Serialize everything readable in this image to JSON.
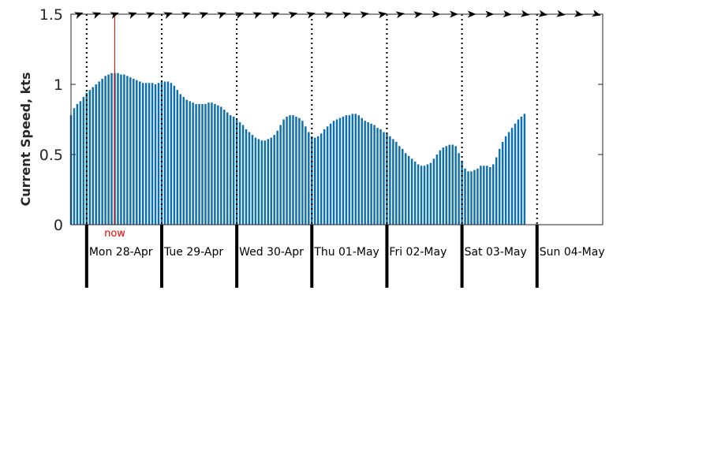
{
  "chart_data": {
    "type": "bar",
    "ylabel": "Current Speed, kts",
    "ylim": [
      0,
      1.5
    ],
    "yticks": [
      {
        "value": 0,
        "label": "0"
      },
      {
        "value": 0.5,
        "label": "0.5"
      },
      {
        "value": 1,
        "label": "1"
      },
      {
        "value": 1.5,
        "label": "1.5"
      }
    ],
    "x_start": "2025-04-27 19:00",
    "x_end": "2025-05-04 21:00",
    "x_step_hours": 1,
    "now": {
      "time": "2025-04-28 09:00",
      "label": "now",
      "color": "#ff0000"
    },
    "day_boundaries": [
      "2025-04-28 00:00",
      "2025-04-29 00:00",
      "2025-04-30 00:00",
      "2025-05-01 00:00",
      "2025-05-02 00:00",
      "2025-05-03 00:00",
      "2025-05-04 00:00"
    ],
    "day_labels": [
      "Mon 28-Apr",
      "Tue 29-Apr",
      "Wed 30-Apr",
      "Thu 01-May",
      "Fri 02-May",
      "Sat 03-May",
      "Sun 04-May"
    ],
    "bar_color": "#0c6fb0",
    "grid": "vertical dotted lines at day boundaries",
    "direction_arrows": "black arrowheads along top edge showing current direction",
    "values": [
      0.78,
      0.83,
      0.86,
      0.88,
      0.91,
      0.94,
      0.96,
      0.98,
      1.0,
      1.02,
      1.04,
      1.06,
      1.07,
      1.08,
      1.08,
      1.08,
      1.07,
      1.07,
      1.06,
      1.05,
      1.04,
      1.03,
      1.02,
      1.01,
      1.01,
      1.01,
      1.01,
      1.0,
      1.01,
      1.02,
      1.02,
      1.02,
      1.01,
      0.99,
      0.96,
      0.93,
      0.91,
      0.89,
      0.88,
      0.87,
      0.86,
      0.86,
      0.86,
      0.86,
      0.87,
      0.87,
      0.86,
      0.85,
      0.84,
      0.82,
      0.8,
      0.78,
      0.77,
      0.75,
      0.73,
      0.71,
      0.68,
      0.66,
      0.64,
      0.62,
      0.61,
      0.6,
      0.6,
      0.61,
      0.62,
      0.64,
      0.67,
      0.71,
      0.75,
      0.77,
      0.78,
      0.78,
      0.77,
      0.76,
      0.74,
      0.7,
      0.66,
      0.63,
      0.62,
      0.63,
      0.65,
      0.68,
      0.7,
      0.72,
      0.74,
      0.75,
      0.76,
      0.77,
      0.78,
      0.78,
      0.79,
      0.79,
      0.78,
      0.76,
      0.74,
      0.73,
      0.72,
      0.71,
      0.69,
      0.68,
      0.66,
      0.65,
      0.63,
      0.61,
      0.59,
      0.56,
      0.54,
      0.51,
      0.49,
      0.47,
      0.45,
      0.43,
      0.42,
      0.42,
      0.43,
      0.44,
      0.47,
      0.5,
      0.53,
      0.55,
      0.56,
      0.57,
      0.57,
      0.56,
      0.51,
      0.45,
      0.4,
      0.38,
      0.38,
      0.39,
      0.4,
      0.42,
      0.42,
      0.42,
      0.41,
      0.43,
      0.48,
      0.54,
      0.59,
      0.63,
      0.66,
      0.69,
      0.72,
      0.75,
      0.77,
      0.79
    ],
    "direction_deg": [
      70,
      70,
      70,
      70,
      70,
      70,
      70,
      70,
      70,
      70,
      70,
      70,
      75,
      75,
      75,
      75,
      80,
      80,
      80,
      80,
      90,
      90,
      90,
      90,
      95,
      100,
      100,
      100,
      100,
      105
    ]
  }
}
